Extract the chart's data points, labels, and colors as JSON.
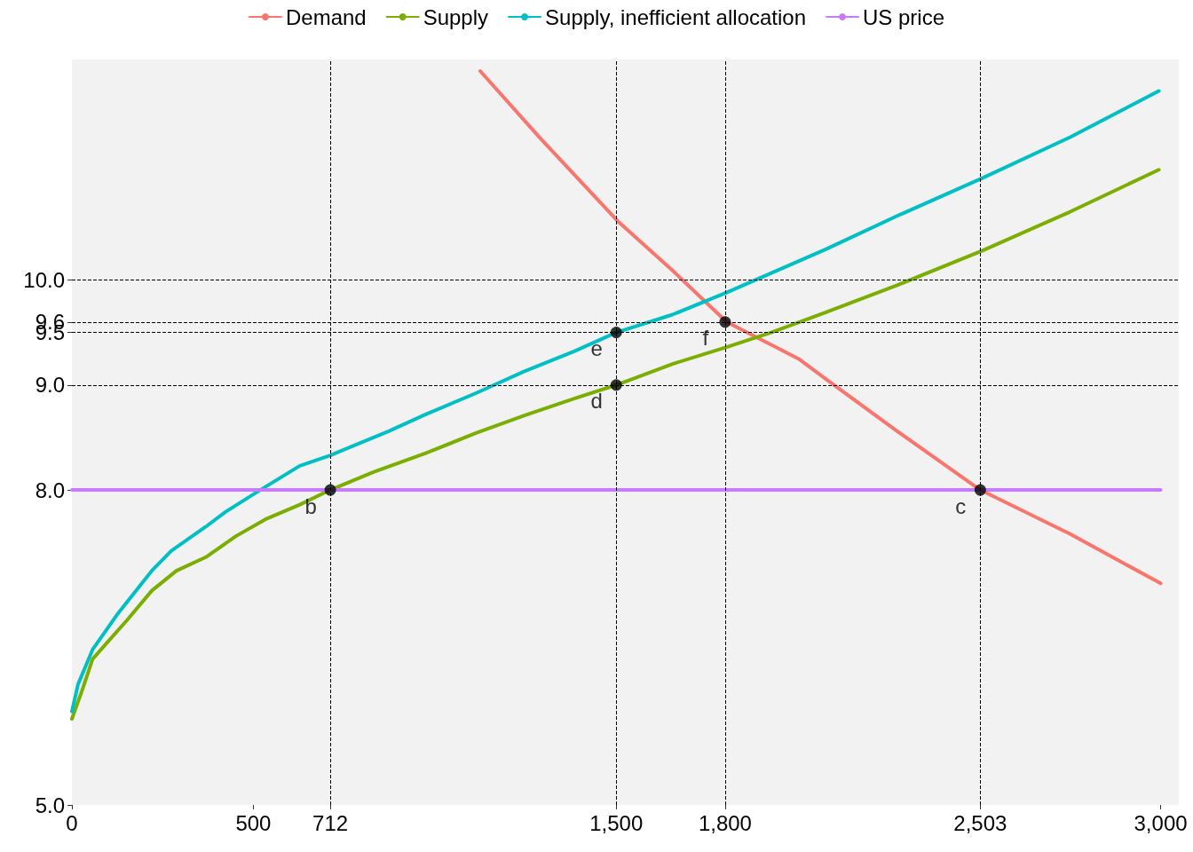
{
  "chart_data": {
    "type": "line",
    "marker": "none",
    "line_style": "solid",
    "legend": "top",
    "grid": false,
    "xlim": [
      0,
      3050
    ],
    "ylim": [
      5,
      12.1
    ],
    "xticks": [
      0,
      500,
      712,
      {
        "value": 1500,
        "label": "1,500"
      },
      {
        "value": 1800,
        "label": "1,800"
      },
      {
        "value": 2503,
        "label": "2,503"
      },
      {
        "value": 3000,
        "label": "3,000"
      }
    ],
    "yticks": [
      {
        "value": 5,
        "label": "5.0"
      },
      {
        "value": 8,
        "label": "8.0"
      },
      {
        "value": 9,
        "label": "9.0"
      },
      9.5,
      9.6,
      {
        "value": 10,
        "label": "10.0"
      }
    ],
    "series": [
      {
        "name": "Demand",
        "color": "#f8766d",
        "x": [
          1125,
          1288,
          1504,
          1655,
          1804,
          2002,
          2076,
          2274,
          2503,
          2751,
          3000
        ],
        "values": [
          11.99,
          11.36,
          10.56,
          10.09,
          9.6,
          9.25,
          9.06,
          8.56,
          8.0,
          7.58,
          7.11
        ]
      },
      {
        "name": "Supply",
        "color": "#7cae00",
        "x": [
          0,
          29,
          57,
          98,
          152,
          220,
          288,
          369,
          452,
          533,
          628,
          712,
          831,
          975,
          1112,
          1247,
          1384,
          1500,
          1655,
          1804,
          1927,
          2076,
          2274,
          2509,
          2751,
          2995
        ],
        "values": [
          5.82,
          6.1,
          6.39,
          6.55,
          6.76,
          7.04,
          7.23,
          7.36,
          7.56,
          7.72,
          7.86,
          8.0,
          8.17,
          8.35,
          8.54,
          8.71,
          8.87,
          9.0,
          9.2,
          9.36,
          9.5,
          9.69,
          9.95,
          10.28,
          10.65,
          11.05
        ]
      },
      {
        "name": "Supply, inefficient allocation",
        "color": "#00bfc4",
        "x": [
          0,
          17,
          57,
          124,
          220,
          274,
          369,
          423,
          519,
          628,
          712,
          873,
          975,
          1112,
          1247,
          1384,
          1500,
          1655,
          1804,
          2076,
          2274,
          2509,
          2751,
          2995
        ],
        "values": [
          5.89,
          6.15,
          6.48,
          6.81,
          7.23,
          7.42,
          7.65,
          7.79,
          8.0,
          8.23,
          8.33,
          8.56,
          8.72,
          8.92,
          9.13,
          9.32,
          9.5,
          9.67,
          9.88,
          10.29,
          10.61,
          10.97,
          11.36,
          11.8
        ]
      },
      {
        "name": "US price",
        "color": "#c77cff",
        "x": [
          0,
          3000
        ],
        "values": [
          8,
          8
        ]
      },
      {
        "type": "scatter",
        "marker": "circle",
        "color": "#000000",
        "x": [
          712,
          2503,
          1500,
          1500,
          1800
        ],
        "values": [
          8,
          8,
          9,
          9.5,
          9.6
        ]
      }
    ],
    "ref_lines": [
      {
        "axis": "x",
        "value": 712,
        "color": "#000000",
        "line_style": "dashed"
      },
      {
        "axis": "x",
        "value": 1500,
        "color": "#000000",
        "line_style": "dashed"
      },
      {
        "axis": "x",
        "value": 1800,
        "color": "#000000",
        "line_style": "dashed"
      },
      {
        "axis": "x",
        "value": 2503,
        "color": "#000000",
        "line_style": "dashed"
      },
      {
        "axis": "y",
        "value": 9,
        "color": "#000000",
        "line_style": "dashed"
      },
      {
        "axis": "y",
        "value": 9.5,
        "color": "#000000",
        "line_style": "dashed"
      },
      {
        "axis": "y",
        "value": 9.6,
        "color": "#000000",
        "line_style": "dashed"
      },
      {
        "axis": "y",
        "value": 10,
        "color": "#000000",
        "line_style": "dashed"
      }
    ],
    "annotations": [
      {
        "text": "b",
        "x": 712,
        "y": 8
      },
      {
        "text": "c",
        "x": 2503,
        "y": 8
      },
      {
        "text": "d",
        "x": 1500,
        "y": 9
      },
      {
        "text": "e",
        "x": 1500,
        "y": 9.5
      },
      {
        "text": "f",
        "x": 1800,
        "y": 9.6
      }
    ]
  }
}
